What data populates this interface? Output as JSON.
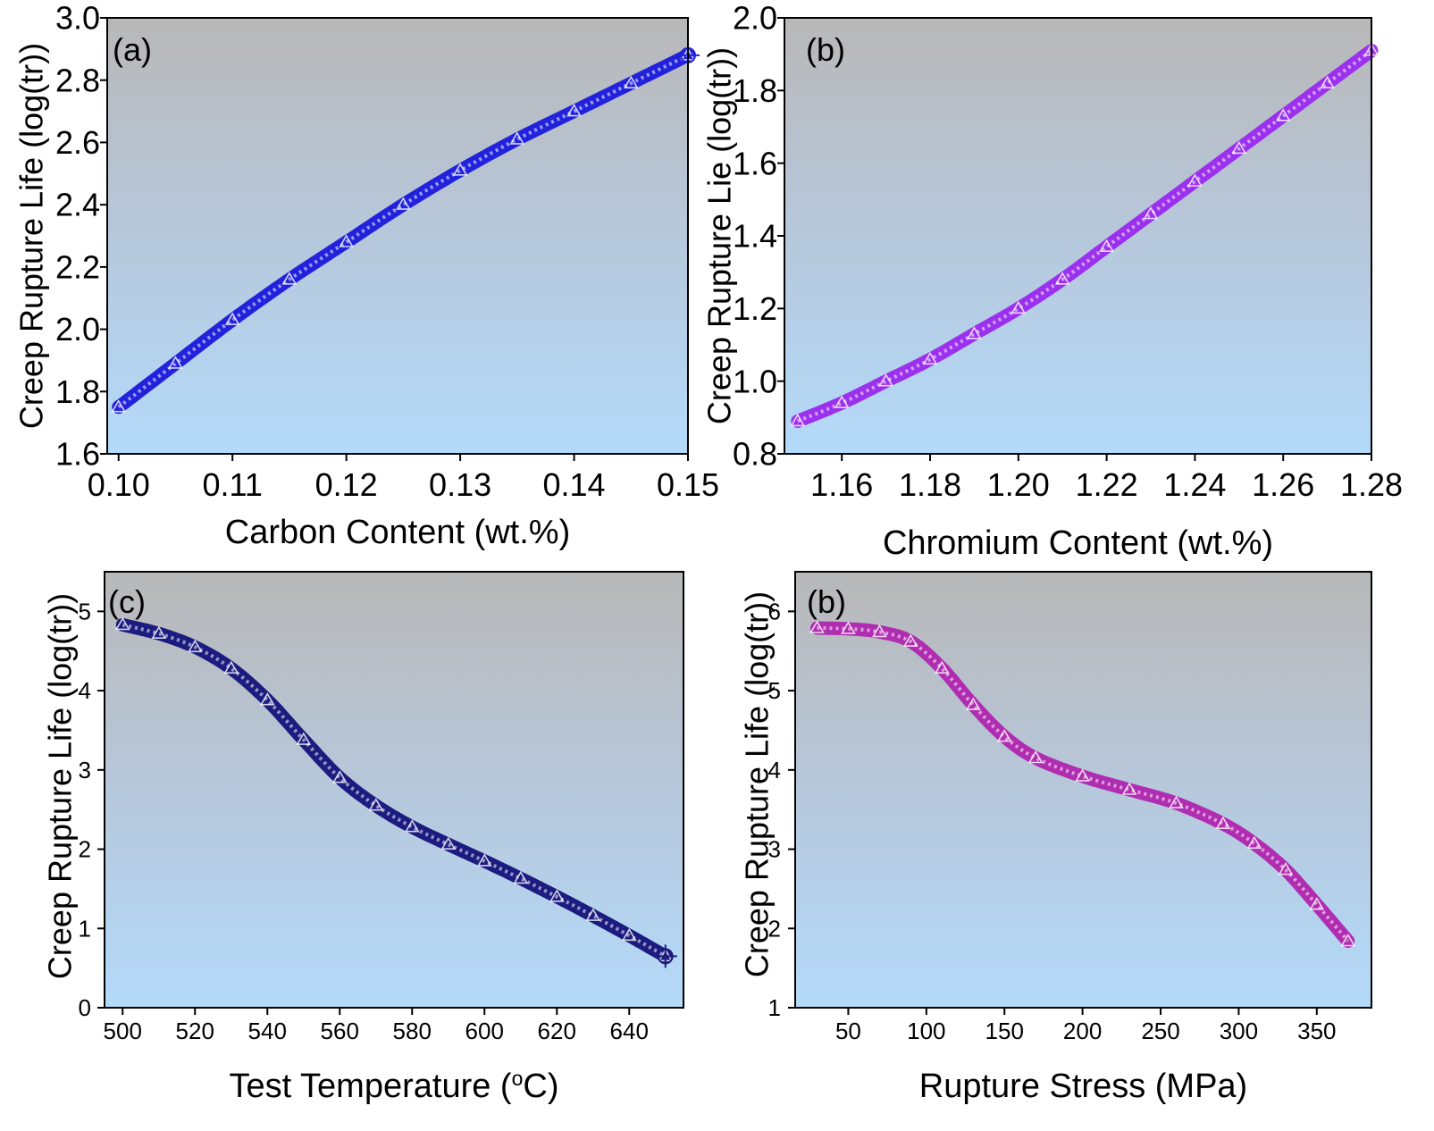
{
  "chart_data": [
    {
      "type": "line",
      "panel_label": "(a)",
      "xlabel": "Carbon Content (wt.%)",
      "ylabel": "Creep Rupture Life (log(tr))",
      "xlim": [
        0.099,
        0.15
      ],
      "ylim": [
        1.6,
        3.0
      ],
      "xticks": [
        0.1,
        0.11,
        0.12,
        0.13,
        0.14,
        0.15
      ],
      "xtick_labels": [
        "0.10",
        "0.11",
        "0.12",
        "0.13",
        "0.14",
        "0.15"
      ],
      "yticks": [
        1.6,
        1.8,
        2.0,
        2.2,
        2.4,
        2.6,
        2.8,
        3.0
      ],
      "ytick_labels": [
        "1.6",
        "1.8",
        "2.0",
        "2.2",
        "2.4",
        "2.6",
        "2.8",
        "3.0"
      ],
      "marker": "open-triangle",
      "end_marker": "crosshair",
      "series": [
        {
          "name": "Carbon Content",
          "color": "#2222dd",
          "x": [
            0.1,
            0.105,
            0.11,
            0.115,
            0.12,
            0.125,
            0.13,
            0.135,
            0.14,
            0.145,
            0.15
          ],
          "y": [
            1.75,
            1.89,
            2.03,
            2.16,
            2.28,
            2.4,
            2.51,
            2.61,
            2.7,
            2.79,
            2.88
          ]
        }
      ]
    },
    {
      "type": "line",
      "panel_label": "(b)",
      "xlabel": "Chromium Content (wt.%)",
      "ylabel": "Creep Rupture Lie (log(tr))",
      "xlim": [
        1.147,
        1.28
      ],
      "ylim": [
        0.8,
        2.0
      ],
      "xticks": [
        1.16,
        1.18,
        1.2,
        1.22,
        1.24,
        1.26,
        1.28
      ],
      "xtick_labels": [
        "1.16",
        "1.18",
        "1.20",
        "1.22",
        "1.24",
        "1.26",
        "1.28"
      ],
      "yticks": [
        0.8,
        1.0,
        1.2,
        1.4,
        1.6,
        1.8,
        2.0
      ],
      "ytick_labels": [
        "0.8",
        "1.0",
        "1.2",
        "1.4",
        "1.6",
        "1.8",
        "2.0"
      ],
      "marker": "open-triangle",
      "series": [
        {
          "name": "Chromium Content",
          "color": "#9b30ee",
          "x": [
            1.15,
            1.16,
            1.17,
            1.18,
            1.19,
            1.2,
            1.21,
            1.22,
            1.23,
            1.24,
            1.25,
            1.26,
            1.27,
            1.28
          ],
          "y": [
            0.89,
            0.94,
            1.0,
            1.06,
            1.13,
            1.2,
            1.28,
            1.37,
            1.46,
            1.55,
            1.64,
            1.73,
            1.82,
            1.91
          ]
        }
      ]
    },
    {
      "type": "line",
      "panel_label": "(c)",
      "xlabel": "Test Temperature (oC)",
      "xlabel_main": "Test Temperature (",
      "xlabel_sup": "o",
      "xlabel_end": "C)",
      "ylabel": "Creep Rupture Life (log(tr))",
      "xlim": [
        495,
        655
      ],
      "ylim": [
        0,
        5.5
      ],
      "xticks": [
        500,
        520,
        540,
        560,
        580,
        600,
        620,
        640
      ],
      "xtick_labels": [
        "500",
        "520",
        "540",
        "560",
        "580",
        "600",
        "620",
        "640"
      ],
      "yticks": [
        0,
        1,
        2,
        3,
        4,
        5
      ],
      "ytick_labels": [
        "0",
        "1",
        "2",
        "3",
        "4",
        "5"
      ],
      "marker": "open-triangle",
      "end_marker": "crosshair",
      "series": [
        {
          "name": "Test Temperature",
          "color": "#1c1c80",
          "x": [
            500,
            510,
            520,
            530,
            540,
            550,
            560,
            570,
            580,
            590,
            600,
            610,
            620,
            630,
            640,
            650
          ],
          "y": [
            4.83,
            4.72,
            4.55,
            4.28,
            3.88,
            3.38,
            2.9,
            2.55,
            2.28,
            2.06,
            1.85,
            1.63,
            1.4,
            1.16,
            0.91,
            0.65
          ]
        }
      ]
    },
    {
      "type": "line",
      "panel_label": "(b)",
      "xlabel": "Rupture Stress (MPa)",
      "ylabel": "Creep Rupture Life (log(tr))",
      "xlim": [
        16,
        385
      ],
      "ylim": [
        1,
        6.5
      ],
      "xticks": [
        50,
        100,
        150,
        200,
        250,
        300,
        350
      ],
      "xtick_labels": [
        "50",
        "100",
        "150",
        "200",
        "250",
        "300",
        "350"
      ],
      "yticks": [
        1,
        2,
        3,
        4,
        5,
        6
      ],
      "ytick_labels": [
        "1",
        "2",
        "3",
        "4",
        "5",
        "6"
      ],
      "marker": "open-triangle",
      "series": [
        {
          "name": "Rupture Stress",
          "color": "#b02cb0",
          "x": [
            30,
            50,
            70,
            90,
            110,
            130,
            150,
            170,
            200,
            230,
            260,
            290,
            310,
            330,
            350,
            370
          ],
          "y": [
            5.79,
            5.78,
            5.74,
            5.62,
            5.28,
            4.82,
            4.42,
            4.15,
            3.92,
            3.75,
            3.58,
            3.32,
            3.07,
            2.74,
            2.3,
            1.84
          ]
        }
      ]
    }
  ],
  "style": {
    "gradient_top": "#b8b8b8",
    "gradient_mid": "#b6c7dc",
    "gradient_bottom": "#b3dafa",
    "axis_color": "#000000"
  }
}
